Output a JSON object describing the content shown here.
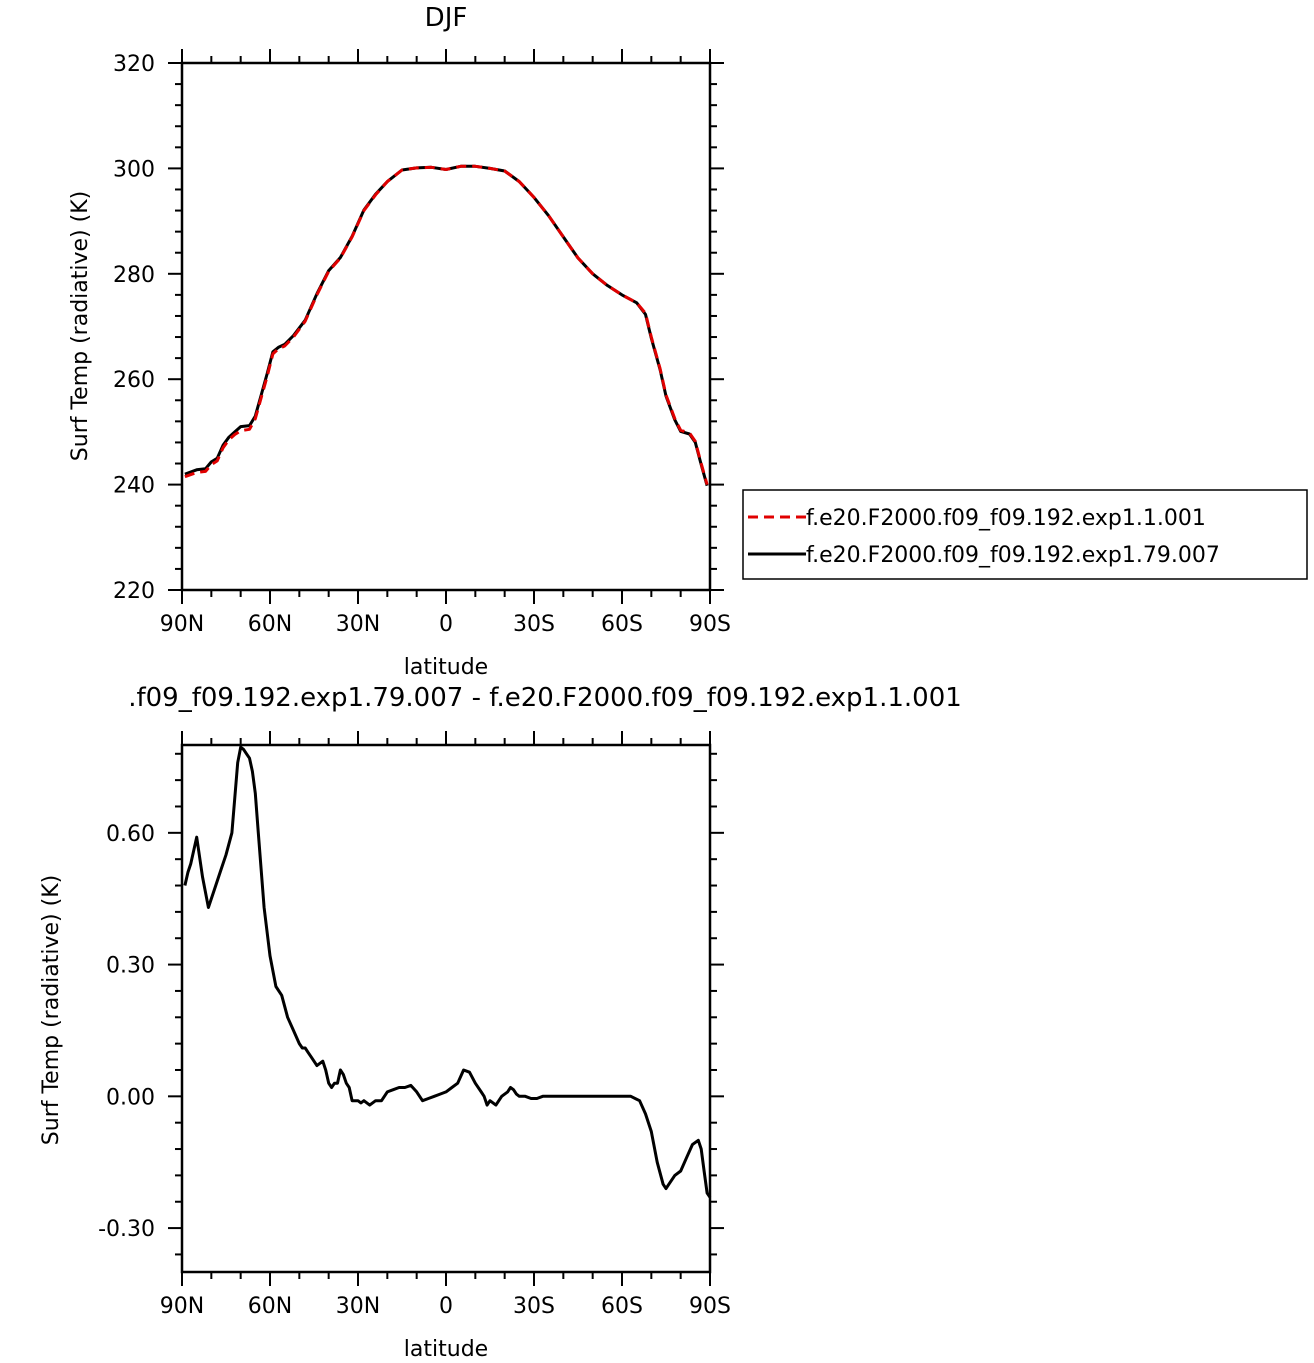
{
  "chart_data": [
    {
      "type": "line",
      "title": "DJF",
      "xlabel": "latitude",
      "ylabel": "Surf Temp (radiative) (K)",
      "xlim": [
        90,
        -90
      ],
      "ylim": [
        220,
        320
      ],
      "x_ticks": [
        90,
        60,
        30,
        0,
        -30,
        -60,
        -90
      ],
      "x_tick_labels": [
        "90N",
        "60N",
        "30N",
        "0",
        "30S",
        "60S",
        "90S"
      ],
      "y_ticks": [
        220,
        240,
        260,
        280,
        300,
        320
      ],
      "y_tick_labels": [
        "220",
        "240",
        "260",
        "280",
        "300",
        "320"
      ],
      "legend_position": "right",
      "series": [
        {
          "name": "f.e20.F2000.f09_f09.192.exp1.1.001",
          "color": "#e00000",
          "dash": "dashed",
          "x": [
            89,
            85,
            82,
            80,
            78,
            76,
            74,
            72,
            70,
            67,
            65,
            63,
            61,
            59,
            57,
            55,
            52,
            48,
            44,
            40,
            36,
            32,
            28,
            24,
            20,
            15,
            10,
            5,
            0,
            -5,
            -10,
            -15,
            -20,
            -25,
            -30,
            -35,
            -40,
            -45,
            -50,
            -55,
            -60,
            -65,
            -68,
            -70,
            -73,
            -75,
            -78,
            -80,
            -83,
            -85,
            -87,
            -89
          ],
          "y": [
            241.5,
            242.3,
            242.5,
            243.8,
            244.5,
            247,
            248.5,
            249.5,
            250.2,
            250.5,
            252.5,
            256.5,
            260.5,
            264.8,
            265.8,
            266.3,
            268,
            271,
            276,
            280.5,
            283,
            287,
            292,
            295,
            297.5,
            299.7,
            300.1,
            300.2,
            299.8,
            300.4,
            300.4,
            300,
            299.5,
            297.5,
            294.5,
            291,
            287,
            283,
            280,
            277.8,
            276,
            274.5,
            272.5,
            268,
            262,
            257,
            252.5,
            250.3,
            249.8,
            248.2,
            244,
            240
          ]
        },
        {
          "name": "f.e20.F2000.f09_f09.192.exp1.79.007",
          "color": "#000000",
          "dash": "solid",
          "x": [
            89,
            85,
            82,
            80,
            78,
            76,
            74,
            72,
            70,
            67,
            65,
            63,
            61,
            59,
            57,
            55,
            52,
            48,
            44,
            40,
            36,
            32,
            28,
            24,
            20,
            15,
            10,
            5,
            0,
            -5,
            -10,
            -15,
            -20,
            -25,
            -30,
            -35,
            -40,
            -45,
            -50,
            -55,
            -60,
            -65,
            -68,
            -70,
            -73,
            -75,
            -78,
            -80,
            -83,
            -85,
            -87,
            -89
          ],
          "y": [
            242,
            242.8,
            243,
            244.3,
            245,
            247.5,
            249,
            250,
            251,
            251.2,
            253,
            257,
            261,
            265.2,
            266.1,
            266.6,
            268.3,
            271.2,
            276.2,
            280.6,
            283.1,
            287.1,
            292.1,
            295.1,
            297.5,
            299.7,
            300.1,
            300.2,
            299.8,
            300.4,
            300.4,
            300,
            299.5,
            297.5,
            294.5,
            291,
            287,
            283,
            280,
            277.8,
            276,
            274.5,
            272.3,
            267.8,
            261.8,
            256.8,
            252.3,
            250.1,
            249.6,
            248,
            243.8,
            239.8
          ]
        }
      ]
    },
    {
      "type": "line",
      "title": ".f09_f09.192.exp1.79.007 - f.e20.F2000.f09_f09.192.exp1.1.001",
      "xlabel": "latitude",
      "ylabel": "Surf Temp (radiative) (K)",
      "xlim": [
        90,
        -90
      ],
      "ylim": [
        -0.4,
        0.8
      ],
      "x_ticks": [
        90,
        60,
        30,
        0,
        -30,
        -60,
        -90
      ],
      "x_tick_labels": [
        "90N",
        "60N",
        "30N",
        "0",
        "30S",
        "60S",
        "90S"
      ],
      "y_ticks": [
        -0.3,
        0,
        0.3,
        0.6
      ],
      "y_tick_labels": [
        "-0.30",
        "0.00",
        "0.30",
        "0.60"
      ],
      "series": [
        {
          "color": "#000000",
          "dash": "solid",
          "x": [
            89,
            88,
            87,
            85,
            83,
            81,
            79,
            77,
            75,
            73,
            72,
            71,
            70,
            69,
            68,
            67,
            66,
            65,
            64,
            62,
            60,
            58,
            56,
            54,
            52,
            50,
            49,
            48,
            47,
            46,
            45,
            44,
            42,
            41,
            40,
            39,
            38,
            37,
            36,
            35,
            34,
            33,
            32,
            31,
            30,
            29,
            28,
            26,
            24,
            22,
            20,
            18,
            16,
            14,
            12,
            10,
            8,
            6,
            4,
            2,
            0,
            -2,
            -4,
            -6,
            -8,
            -10,
            -12,
            -13,
            -14,
            -15,
            -17,
            -19,
            -21,
            -22,
            -23,
            -24,
            -25,
            -27,
            -29,
            -31,
            -33,
            -35,
            -38,
            -40,
            -43,
            -46,
            -50,
            -55,
            -60,
            -63,
            -66,
            -68,
            -70,
            -72,
            -74,
            -75,
            -76,
            -78,
            -80,
            -82,
            -84,
            -86,
            -87,
            -88,
            -89,
            -90
          ],
          "y": [
            0.48,
            0.51,
            0.53,
            0.59,
            0.5,
            0.43,
            0.47,
            0.51,
            0.55,
            0.6,
            0.68,
            0.76,
            0.795,
            0.79,
            0.78,
            0.77,
            0.74,
            0.69,
            0.6,
            0.43,
            0.32,
            0.25,
            0.23,
            0.18,
            0.15,
            0.12,
            0.11,
            0.11,
            0.1,
            0.09,
            0.08,
            0.07,
            0.08,
            0.06,
            0.03,
            0.02,
            0.03,
            0.03,
            0.06,
            0.05,
            0.03,
            0.02,
            -0.01,
            -0.01,
            -0.01,
            -0.015,
            -0.01,
            -0.02,
            -0.01,
            -0.01,
            0.01,
            0.015,
            0.02,
            0.02,
            0.025,
            0.01,
            -0.01,
            -0.005,
            0,
            0.005,
            0.01,
            0.02,
            0.03,
            0.06,
            0.055,
            0.03,
            0.01,
            0.0,
            -0.02,
            -0.01,
            -0.02,
            0.0,
            0.01,
            0.02,
            0.015,
            0.005,
            0.0,
            0.0,
            -0.005,
            -0.005,
            0.0,
            0.0,
            0.0,
            0.0,
            0.0,
            0.0,
            0.0,
            0.0,
            0.0,
            0.0,
            -0.01,
            -0.04,
            -0.08,
            -0.15,
            -0.2,
            -0.21,
            -0.2,
            -0.18,
            -0.17,
            -0.14,
            -0.11,
            -0.1,
            -0.12,
            -0.17,
            -0.22,
            -0.23
          ]
        }
      ]
    }
  ]
}
